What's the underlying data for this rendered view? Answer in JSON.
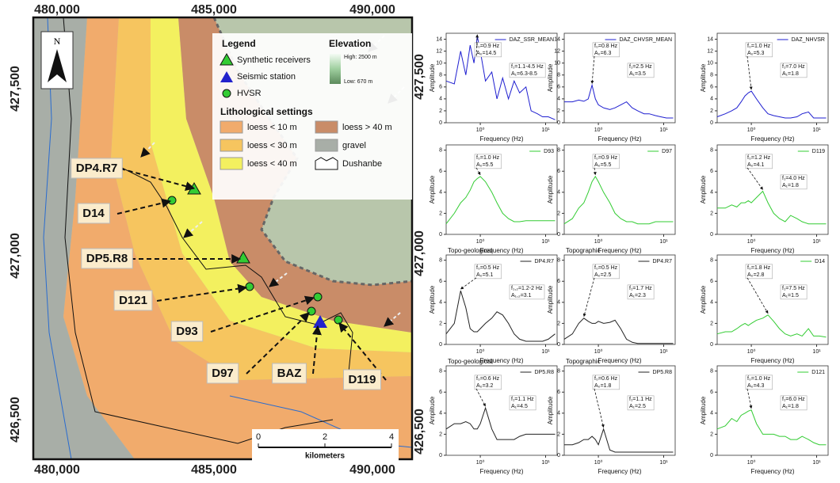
{
  "map": {
    "xticks": [
      "480,000",
      "485,000",
      "490,000"
    ],
    "yticks": [
      "427,500",
      "427,000",
      "426,500"
    ],
    "north": "N",
    "legend": {
      "title": "Legend",
      "items": [
        "Synthetic receivers",
        "Seismic station",
        "HVSR"
      ],
      "elevation_title": "Elevation",
      "elevation_high": "High: 2500 m",
      "elevation_low": "Low: 670 m",
      "litho_title": "Lithological settings",
      "litho": [
        "loess < 10 m",
        "loess > 40 m",
        "loess < 30 m",
        "gravel",
        "loess < 40 m",
        "Dushanbe"
      ]
    },
    "labels": [
      "DP4.R7",
      "D14",
      "DP5.R8",
      "D121",
      "D93",
      "D97",
      "BAZ",
      "D119"
    ],
    "scale": {
      "ticks": [
        0,
        2,
        4
      ],
      "unit": "kilometers"
    }
  },
  "plots": {
    "xlabel": "Frequency (Hz)",
    "ylabel": "Amplitude",
    "x": [
      0.3,
      0.4,
      0.5,
      0.6,
      0.7,
      0.8,
      0.9,
      1.0,
      1.2,
      1.5,
      1.8,
      2.2,
      2.7,
      3.3,
      4,
      5,
      6,
      7.5,
      9,
      11,
      14
    ],
    "xlim": [
      0.3,
      15
    ],
    "xticks": [
      {
        "value": 1,
        "label": "10⁰"
      },
      {
        "value": 10,
        "label": "10¹"
      }
    ],
    "items": [
      {
        "legend": "DAZ_SSR_MEAN",
        "color": "#1f1fd0",
        "ylim": [
          0,
          15
        ],
        "yticks": [
          0,
          2,
          4,
          6,
          8,
          10,
          12,
          14
        ],
        "values": [
          7,
          6.5,
          12,
          8,
          13,
          10,
          14.5,
          12,
          7,
          8.5,
          4,
          7.5,
          4,
          7,
          5,
          6,
          2,
          1.5,
          1,
          1,
          0.5
        ],
        "annotations": [
          [
            "f₀=0.9 Hz",
            "A₀=14.5"
          ],
          [
            "f₁=1.1-4.5 Hz",
            "A₁=6.3-8.5"
          ]
        ]
      },
      {
        "legend": "DAZ_CHVSR_MEAN",
        "color": "#1f1fd0",
        "ylim": [
          0,
          15
        ],
        "yticks": [
          0,
          2,
          4,
          6,
          8,
          10,
          12,
          14
        ],
        "values": [
          3.5,
          3.5,
          3.8,
          3.6,
          4,
          6.3,
          4,
          3,
          2.5,
          2.2,
          2.5,
          3,
          3.5,
          2.5,
          2,
          1.5,
          1.5,
          1.2,
          1,
          0.8,
          0.8
        ],
        "annotations": [
          [
            "f₀=0.8 Hz",
            "A₀=6.3"
          ],
          [
            "f₁=2.5 Hz",
            "A₁=3.5"
          ]
        ]
      },
      {
        "legend": "DAZ_NHVSR",
        "color": "#1f1fd0",
        "ylim": [
          0,
          15
        ],
        "yticks": [
          0,
          2,
          4,
          6,
          8,
          10,
          12,
          14
        ],
        "values": [
          1,
          1.5,
          2,
          2.5,
          3.5,
          4.5,
          5,
          5.3,
          4,
          2.5,
          1.5,
          1.2,
          1,
          0.8,
          0.8,
          1,
          1.5,
          1.8,
          0.8,
          0.8,
          0.8
        ],
        "annotations": [
          [
            "f₀=1.0 Hz",
            "A₀=5.3"
          ],
          [
            "f₁=7.0 Hz",
            "A₁=1.8"
          ]
        ]
      },
      {
        "legend": "D93",
        "color": "#33cc33",
        "ylim": [
          0,
          8.5
        ],
        "yticks": [
          0,
          2,
          4,
          6,
          8
        ],
        "values": [
          1,
          2,
          3,
          3.5,
          4.2,
          5,
          5.3,
          5.5,
          5,
          4,
          3,
          2,
          1.5,
          1.2,
          1.2,
          1.3,
          1.3,
          1.3,
          1.3,
          1.3,
          1.3
        ],
        "annotations": [
          [
            "f₀=1.0 Hz",
            "A₀=5.5"
          ]
        ]
      },
      {
        "legend": "D97",
        "color": "#33cc33",
        "ylim": [
          0,
          8.5
        ],
        "yticks": [
          0,
          2,
          4,
          6,
          8
        ],
        "values": [
          1,
          1.5,
          2.5,
          3,
          4,
          5,
          5.5,
          5,
          4,
          3,
          2,
          1.5,
          1.2,
          1.2,
          1,
          1,
          1,
          1.2,
          1.2,
          1.2,
          1.2
        ],
        "annotations": [
          [
            "f₀=0.9 Hz",
            "A₀=5.5"
          ]
        ]
      },
      {
        "legend": "D119",
        "color": "#33cc33",
        "ylim": [
          0,
          8.5
        ],
        "yticks": [
          0,
          2,
          4,
          6,
          8
        ],
        "values": [
          2.5,
          2.5,
          2.8,
          2.6,
          3,
          3,
          3.2,
          3,
          3.5,
          4.1,
          3,
          2,
          1.5,
          1.2,
          1.8,
          1.5,
          1.2,
          1,
          1,
          1,
          1
        ],
        "annotations": [
          [
            "f₀=1.2 Hz",
            "A₀=4.1"
          ],
          [
            "f₁=4.0 Hz",
            "A₁=1.8"
          ]
        ]
      },
      {
        "legend": "DP4.R7",
        "inset": "Topo-geological",
        "color": "#222222",
        "ylim": [
          0,
          8.5
        ],
        "yticks": [
          0,
          2,
          4,
          6,
          8
        ],
        "values": [
          1,
          2,
          5.1,
          3.5,
          1.5,
          1.2,
          1.2,
          1.5,
          2,
          2.5,
          3.1,
          2.8,
          2,
          1,
          0.5,
          0.3,
          0.3,
          0.3,
          0.3,
          0.5,
          1
        ],
        "annotations": [
          [
            "f₀=0.5 Hz",
            "A₀=5.1"
          ],
          [
            "f₁,₂=1.2-2 Hz",
            "A₁,₂=3.1"
          ]
        ]
      },
      {
        "legend": "DP4.R7",
        "inset": "Topographic",
        "color": "#222222",
        "ylim": [
          0,
          8.5
        ],
        "yticks": [
          0,
          2,
          4,
          6,
          8
        ],
        "values": [
          0.5,
          1,
          2,
          2.5,
          2.2,
          2,
          2,
          2.2,
          2,
          2.1,
          2.3,
          1.5,
          0.5,
          0.2,
          0.1,
          0.1,
          0.1,
          0.1,
          0.1,
          0.1,
          0.1
        ],
        "annotations": [
          [
            "f₀=0.5 Hz",
            "A₀=2.5"
          ],
          [
            "f₁=1.7 Hz",
            "A₁=2.3"
          ]
        ]
      },
      {
        "legend": "D14",
        "color": "#33cc33",
        "ylim": [
          0,
          8.5
        ],
        "yticks": [
          0,
          2,
          4,
          6,
          8
        ],
        "values": [
          1,
          1.2,
          1.2,
          1.5,
          1.8,
          2,
          1.8,
          2,
          2.3,
          2.5,
          2.8,
          2.2,
          1.5,
          1,
          0.8,
          1,
          0.8,
          1.5,
          0.8,
          0.8,
          0.7
        ],
        "annotations": [
          [
            "f₀=1.8 Hz",
            "A₀=2.8"
          ],
          [
            "f₁=7.5 Hz",
            "A₁=1.5"
          ]
        ]
      },
      {
        "legend": "DP5.R8",
        "inset": "Topo-geological",
        "color": "#222222",
        "ylim": [
          0,
          8.5
        ],
        "yticks": [
          0,
          2,
          4,
          6,
          8
        ],
        "values": [
          2.5,
          3,
          3,
          3.2,
          3,
          2.5,
          2.5,
          3,
          4.5,
          2.5,
          1.5,
          1.5,
          1.5,
          1.5,
          1.8,
          2,
          2,
          2,
          2,
          2,
          2
        ],
        "annotations": [
          [
            "f₀=0.6 Hz",
            "A₀=3.2"
          ],
          [
            "f₁=1.1 Hz",
            "A₁=4.5"
          ]
        ]
      },
      {
        "legend": "DP5.R8",
        "inset": "Topographic",
        "color": "#222222",
        "ylim": [
          0,
          8.5
        ],
        "yticks": [
          0,
          2,
          4,
          6,
          8
        ],
        "values": [
          1,
          1,
          1.2,
          1.5,
          1.5,
          1.8,
          1.5,
          1,
          2.5,
          0.5,
          0.3,
          0.3,
          0.3,
          0.3,
          0.3,
          0.3,
          0.3,
          0.3,
          0.3,
          0.3,
          0.3
        ],
        "annotations": [
          [
            "f₀=0.6 Hz",
            "A₀=1.8"
          ],
          [
            "f₁=1.1 Hz",
            "A₁=2.5"
          ]
        ]
      },
      {
        "legend": "D121",
        "color": "#33cc33",
        "ylim": [
          0,
          8.5
        ],
        "yticks": [
          0,
          2,
          4,
          6,
          8
        ],
        "values": [
          2.5,
          2.8,
          3.5,
          3.2,
          3.8,
          4,
          4.2,
          4.3,
          3,
          2,
          2,
          2,
          1.8,
          1.8,
          1.5,
          1.5,
          1.8,
          1.5,
          1.2,
          1,
          1
        ],
        "annotations": [
          [
            "f₀=1.0 Hz",
            "A₀=4.3"
          ],
          [
            "f₁=6.0 Hz",
            "A₁=1.8"
          ]
        ]
      }
    ]
  }
}
